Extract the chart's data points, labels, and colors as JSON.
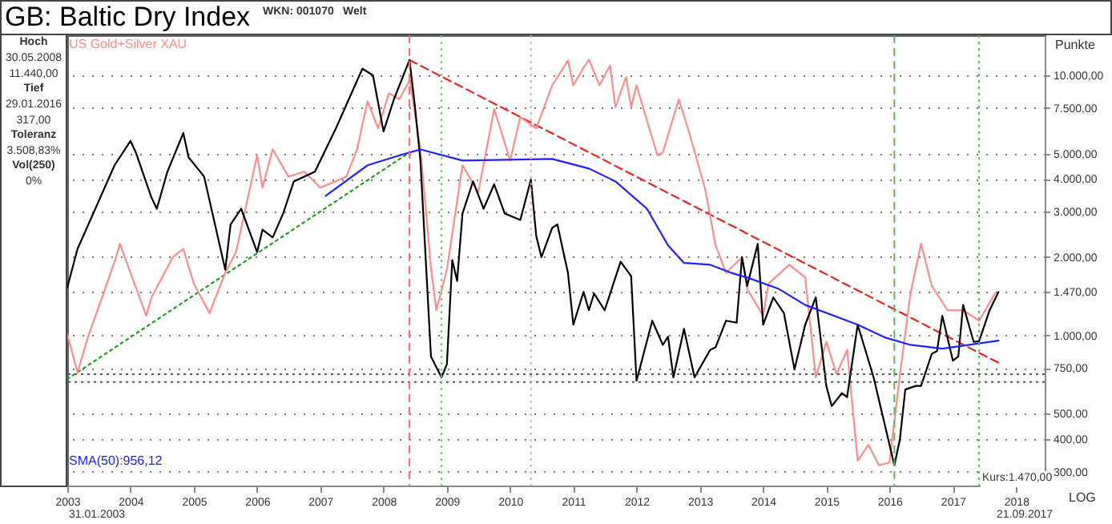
{
  "chart_data": {
    "type": "line",
    "title": "GB: Baltic Dry Index",
    "ylabel": "Punkte",
    "annotations": [
      "WKN: 001070",
      "Welt",
      "Hoch",
      "30.05.2008",
      "11.440,00",
      "Tief",
      "29.01.2016",
      "317,00",
      "Toleranz",
      "3.508,83%",
      "Vol(250)",
      "0%",
      "Kurs:1.470,00",
      "31.01.2003",
      "21.09.2017",
      "LOG"
    ],
    "log": "y",
    "grid": "y",
    "xlim": [
      "2003-01-01",
      "2018-06-15"
    ],
    "ylim": [
      265,
      14250
    ],
    "xticks": [
      "2003",
      "2004",
      "2005",
      "2006",
      "2007",
      "2008",
      "2009",
      "2010",
      "2011",
      "2012",
      "2013",
      "2014",
      "2015",
      "2016",
      "2017",
      "2018"
    ],
    "yticks": [
      {
        "value": 300,
        "label": "300,00"
      },
      {
        "value": 400,
        "label": "400,00"
      },
      {
        "value": 500,
        "label": "500,00"
      },
      {
        "value": 750,
        "label": "750,00"
      },
      {
        "value": 1000,
        "label": "1.000,00"
      },
      {
        "value": 1470,
        "label": "1.470,00"
      },
      {
        "value": 2000,
        "label": "2.000,00"
      },
      {
        "value": 3000,
        "label": "3.000,00"
      },
      {
        "value": 4000,
        "label": "4.000,00"
      },
      {
        "value": 5000,
        "label": "5.000,00"
      },
      {
        "value": 7500,
        "label": "7.500,00"
      },
      {
        "value": 10000,
        "label": "10.000,00"
      }
    ],
    "ref_lines": [
      {
        "axis": "y",
        "value": 710,
        "color": "#555555",
        "line_style": "dotted"
      },
      {
        "axis": "y",
        "value": 663,
        "color": "#555555",
        "line_style": "dotted"
      },
      {
        "axis": "x",
        "value": "2008-05-30",
        "color": "#ff6666",
        "line_style": "dashed"
      },
      {
        "axis": "x",
        "value": "2008-12",
        "color": "#66cc66",
        "line_style": "dotted"
      },
      {
        "axis": "x",
        "value": "2010-05",
        "color": "#ff9999",
        "line_style": "dotted"
      },
      {
        "axis": "x",
        "value": "2016-01-29",
        "color": "#55bb55",
        "line_style": "dashed"
      },
      {
        "axis": "x",
        "value": "2017-06",
        "color": "#55bb55",
        "line_style": "dotted"
      }
    ],
    "series": [
      {
        "type": "line",
        "color": "#229922",
        "line_style": "dotted",
        "x": [
          "2003-01",
          "2008-05-30"
        ],
        "values": [
          680,
          5050
        ]
      },
      {
        "type": "line",
        "color": "#ee2222",
        "line_style": "dashed",
        "x": [
          "2008-05-30",
          "2017-09-21"
        ],
        "values": [
          11440,
          785
        ]
      },
      {
        "name": "US Gold+Silver XAU",
        "color": "#ff8c8c",
        "x": [
          "2003-01",
          "2003-03",
          "2003-05",
          "2003-08",
          "2003-10",
          "2003-11",
          "2004-01",
          "2004-04",
          "2004-05",
          "2004-09",
          "2004-11",
          "2005-01",
          "2005-04",
          "2005-07",
          "2005-09",
          "2006-01",
          "2006-02",
          "2006-04",
          "2006-07",
          "2006-10",
          "2007-01",
          "2007-06",
          "2007-08",
          "2007-10",
          "2007-12",
          "2008-02",
          "2008-04",
          "2008-06",
          "2008-08",
          "2008-10",
          "2008-11",
          "2009-01",
          "2009-04",
          "2009-07",
          "2009-10",
          "2010-01",
          "2010-03",
          "2010-06",
          "2010-09",
          "2010-12",
          "2011-01",
          "2011-03",
          "2011-04",
          "2011-06",
          "2011-08",
          "2011-09",
          "2011-11",
          "2011-12",
          "2012-01",
          "2012-03",
          "2012-05",
          "2012-06",
          "2012-09",
          "2012-11",
          "2013-02",
          "2013-04",
          "2013-06",
          "2013-09",
          "2013-10",
          "2014-01",
          "2014-02",
          "2014-06",
          "2014-09",
          "2014-11",
          "2015-01",
          "2015-03",
          "2015-05",
          "2015-07",
          "2015-09",
          "2015-11",
          "2016-01",
          "2016-03",
          "2016-05",
          "2016-07",
          "2016-09",
          "2016-12",
          "2017-03",
          "2017-06",
          "2017-09"
        ],
        "values": [
          1010,
          720,
          990,
          1470,
          1920,
          2250,
          1740,
          1190,
          1400,
          2000,
          2150,
          1580,
          1220,
          1740,
          2090,
          4920,
          3700,
          5190,
          4080,
          4260,
          3700,
          4080,
          5190,
          7950,
          6250,
          8530,
          8080,
          9600,
          5190,
          1820,
          1250,
          1790,
          4510,
          3540,
          7420,
          4700,
          6900,
          6250,
          9150,
          11400,
          9150,
          10700,
          11500,
          9150,
          10900,
          7530,
          9850,
          7530,
          9150,
          6700,
          4920,
          5050,
          8080,
          5990,
          3640,
          2220,
          1740,
          2000,
          1510,
          1190,
          1580,
          1870,
          1670,
          690,
          945,
          710,
          880,
          330,
          380,
          317,
          325,
          710,
          1450,
          2250,
          1550,
          1250,
          1250,
          1140,
          1450
        ]
      },
      {
        "color": "#000000",
        "x": [
          "2003-01",
          "2003-03",
          "2003-10",
          "2004-01",
          "2004-02",
          "2004-05",
          "2004-06",
          "2004-08",
          "2004-11",
          "2004-12",
          "2005-03",
          "2005-07",
          "2005-08",
          "2005-10",
          "2006-01",
          "2006-02",
          "2006-04",
          "2006-06",
          "2006-08",
          "2006-12",
          "2007-04",
          "2007-09",
          "2007-11",
          "2008-01",
          "2008-03",
          "2008-05-30",
          "2008-07",
          "2008-08",
          "2008-10",
          "2008-12",
          "2009-01",
          "2009-02",
          "2009-03",
          "2009-04",
          "2009-06",
          "2009-08",
          "2009-10",
          "2009-12",
          "2010-03",
          "2010-05",
          "2010-06",
          "2010-07",
          "2010-09",
          "2010-10",
          "2010-12",
          "2011-01",
          "2011-03",
          "2011-04",
          "2011-05",
          "2011-07",
          "2011-10",
          "2011-12",
          "2012-01",
          "2012-04",
          "2012-06",
          "2012-07",
          "2012-08",
          "2012-10",
          "2012-12",
          "2013-03",
          "2013-04",
          "2013-06",
          "2013-08",
          "2013-09",
          "2013-10",
          "2013-12",
          "2014-01",
          "2014-03",
          "2014-05",
          "2014-07",
          "2014-09",
          "2014-11",
          "2015-01",
          "2015-02",
          "2015-04",
          "2015-05",
          "2015-07",
          "2015-10",
          "2016-01-29",
          "2016-03",
          "2016-04",
          "2016-06",
          "2016-07",
          "2016-09",
          "2016-10",
          "2016-11",
          "2017-01",
          "2017-02",
          "2017-03",
          "2017-05",
          "2017-06",
          "2017-08",
          "2017-09-21"
        ],
        "values": [
          1530,
          2150,
          4510,
          5590,
          5050,
          3390,
          3070,
          4260,
          6000,
          4840,
          4080,
          1790,
          2670,
          3070,
          2090,
          2550,
          2380,
          2950,
          3910,
          4260,
          6250,
          10600,
          10000,
          6080,
          8080,
          11440,
          7530,
          4700,
          830,
          690,
          775,
          1950,
          1620,
          2940,
          3910,
          3070,
          3810,
          2940,
          2780,
          3970,
          2410,
          2000,
          2590,
          2670,
          1740,
          1100,
          1470,
          1250,
          1450,
          1250,
          1920,
          1690,
          670,
          1140,
          920,
          990,
          690,
          1060,
          690,
          880,
          900,
          1140,
          1120,
          2000,
          1550,
          2250,
          1100,
          1400,
          1220,
          740,
          1100,
          1400,
          640,
          535,
          600,
          580,
          1100,
          690,
          317,
          400,
          620,
          640,
          640,
          850,
          870,
          1190,
          800,
          830,
          1310,
          945,
          950,
          1250,
          1470
        ]
      },
      {
        "name": "SMA(50):956,12",
        "color": "#2222ff",
        "x": [
          "2007-02",
          "2007-10",
          "2008-04",
          "2008-08",
          "2009-04",
          "2010-09",
          "2011-04",
          "2011-09",
          "2012-03",
          "2012-07",
          "2012-10",
          "2013-03",
          "2013-07",
          "2013-10",
          "2014-04",
          "2014-09",
          "2015-07",
          "2015-12",
          "2016-05",
          "2016-11",
          "2017-09-21"
        ],
        "values": [
          3440,
          4510,
          4920,
          5190,
          4700,
          4770,
          4380,
          3910,
          3070,
          2220,
          1900,
          1870,
          1740,
          1670,
          1510,
          1310,
          1100,
          985,
          920,
          890,
          956
        ]
      }
    ]
  }
}
